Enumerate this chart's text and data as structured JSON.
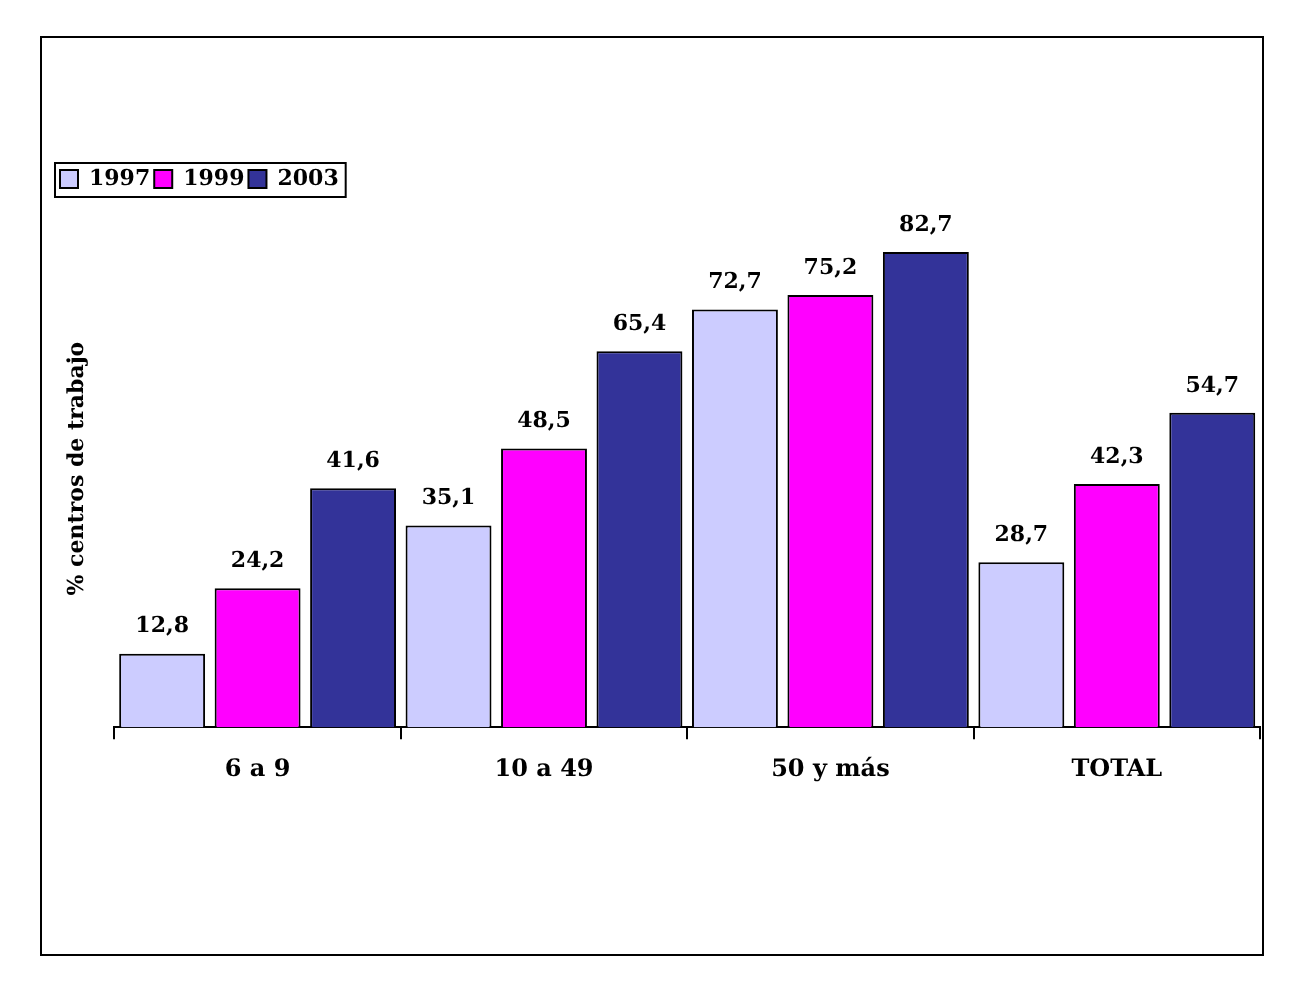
{
  "chart_data": {
    "type": "bar",
    "ylabel": "% centros de trabajo",
    "categories": [
      "6 a 9",
      "10 a 49",
      "50 y más",
      "TOTAL"
    ],
    "series": [
      {
        "name": "1997",
        "color": "#ccccff",
        "values": [
          12.8,
          35.1,
          72.7,
          28.7
        ],
        "value_labels": [
          "12,8",
          "35,1",
          "72,7",
          "28,7"
        ]
      },
      {
        "name": "1999",
        "color": "#ff00ff",
        "values": [
          24.2,
          48.5,
          75.2,
          42.3
        ],
        "value_labels": [
          "24,2",
          "48,5",
          "75,2",
          "42,3"
        ]
      },
      {
        "name": "2003",
        "color": "#333399",
        "values": [
          41.6,
          65.4,
          82.7,
          54.7
        ],
        "value_labels": [
          "41,6",
          "65,4",
          "82,7",
          "54,7"
        ]
      }
    ],
    "legend": "top left",
    "grid": false
  }
}
